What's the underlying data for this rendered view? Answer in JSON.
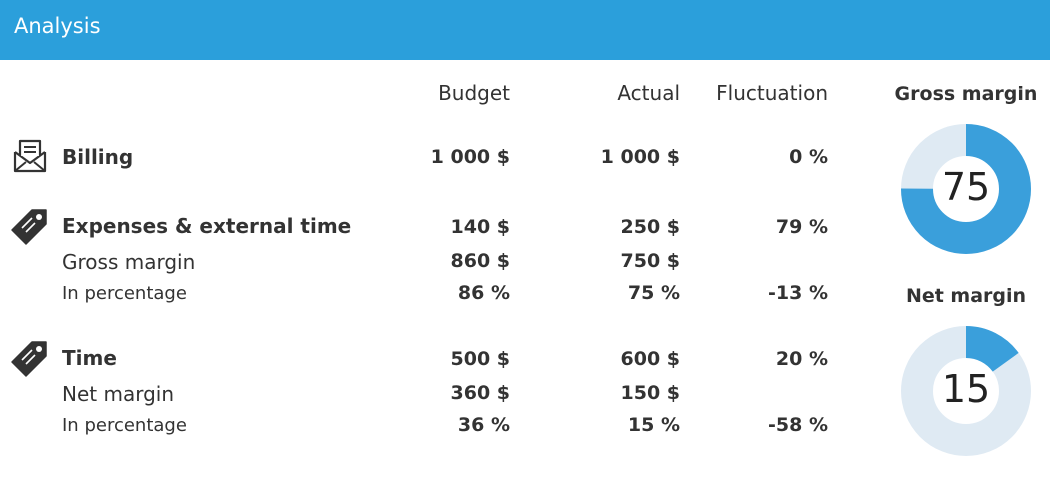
{
  "header": {
    "title": "Analysis"
  },
  "columns": {
    "budget": "Budget",
    "actual": "Actual",
    "fluctuation": "Fluctuation"
  },
  "sections": [
    {
      "label": "Billing",
      "icon": "invoice-envelope-icon",
      "budget": "1 000 $",
      "actual": "1 000 $",
      "fluctuation": "0 %"
    },
    {
      "label": "Expenses & external time",
      "icon": "price-tag-icon",
      "budget": "140 $",
      "actual": "250 $",
      "fluctuation": "79 %",
      "sub": [
        {
          "label": "Gross margin",
          "budget": "860 $",
          "actual": "750 $",
          "fluctuation": ""
        },
        {
          "label": "In percentage",
          "budget": "86 %",
          "actual": "75 %",
          "fluctuation": "-13 %"
        }
      ]
    },
    {
      "label": "Time",
      "icon": "price-tag-icon",
      "budget": "500 $",
      "actual": "600 $",
      "fluctuation": "20 %",
      "sub": [
        {
          "label": "Net margin",
          "budget": "360 $",
          "actual": "150 $",
          "fluctuation": ""
        },
        {
          "label": "In percentage",
          "budget": "36 %",
          "actual": "15 %",
          "fluctuation": "-58 %"
        }
      ]
    }
  ],
  "gauges": [
    {
      "title": "Gross margin",
      "value": "75",
      "percent": 75
    },
    {
      "title": "Net margin",
      "value": "15",
      "percent": 15
    }
  ],
  "colors": {
    "header": "#2b9fdb",
    "gauge_fill": "#3a9fdb",
    "gauge_track": "#dfeaf3"
  }
}
